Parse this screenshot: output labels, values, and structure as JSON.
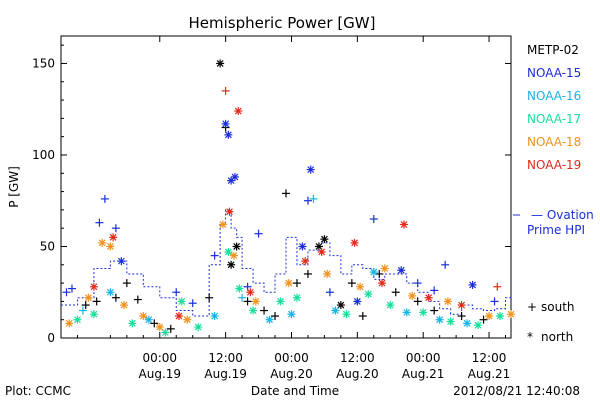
{
  "colors": {
    "METP-02": "#000000",
    "NOAA-15": "#1a2fd8",
    "NOAA-16": "#16b4e6",
    "NOAA-17": "#14e09a",
    "NOAA-18": "#f0921e",
    "NOAA-19": "#e02a1a",
    "ovation": "#1a2fd8"
  },
  "chart_data": {
    "type": "scatter",
    "title": "Hemispheric Power [GW]",
    "ylabel": "P [GW]",
    "xlabel": "Date and Time",
    "ylim": [
      0,
      165
    ],
    "y_ticks": [
      0,
      50,
      100,
      150
    ],
    "x_ticks": [
      {
        "time": "00:00",
        "date": "Aug.19"
      },
      {
        "time": "12:00",
        "date": "Aug.19"
      },
      {
        "time": "00:00",
        "date": "Aug.20"
      },
      {
        "time": "12:00",
        "date": "Aug.20"
      },
      {
        "time": "00:00",
        "date": "Aug.21"
      },
      {
        "time": "12:00",
        "date": "Aug.21"
      }
    ],
    "legend": [
      "METP-02",
      "NOAA-15",
      "NOAA-16",
      "NOAA-17",
      "NOAA-18",
      "NOAA-19"
    ],
    "ovation_label": [
      "— Ovation",
      "Prime HPI"
    ],
    "marker_key": [
      {
        "symbol": "+",
        "label": "south"
      },
      {
        "symbol": "*",
        "label": "north"
      }
    ],
    "series": [
      {
        "name": "METP-02",
        "points": [
          {
            "h": -13.5,
            "v": 18,
            "m": "+"
          },
          {
            "h": -11.5,
            "v": 20,
            "m": "+"
          },
          {
            "h": -8,
            "v": 22,
            "m": "+"
          },
          {
            "h": -6,
            "v": 30,
            "m": "+"
          },
          {
            "h": -4,
            "v": 21,
            "m": "+"
          },
          {
            "h": -1,
            "v": 8,
            "m": "+"
          },
          {
            "h": 2,
            "v": 5,
            "m": "+"
          },
          {
            "h": 9,
            "v": 22,
            "m": "+"
          },
          {
            "h": 11,
            "v": 150,
            "m": "*"
          },
          {
            "h": 12,
            "v": 115,
            "m": "+"
          },
          {
            "h": 13,
            "v": 40,
            "m": "*"
          },
          {
            "h": 14,
            "v": 50,
            "m": "*"
          },
          {
            "h": 16,
            "v": 20,
            "m": "+"
          },
          {
            "h": 19,
            "v": 15,
            "m": "+"
          },
          {
            "h": 21,
            "v": 12,
            "m": "+"
          },
          {
            "h": 23,
            "v": 79,
            "m": "+"
          },
          {
            "h": 25,
            "v": 30,
            "m": "+"
          },
          {
            "h": 27,
            "v": 35,
            "m": "+"
          },
          {
            "h": 29,
            "v": 50,
            "m": "*"
          },
          {
            "h": 30,
            "v": 54,
            "m": "*"
          },
          {
            "h": 33,
            "v": 18,
            "m": "*"
          },
          {
            "h": 35,
            "v": 30,
            "m": "+"
          },
          {
            "h": 37,
            "v": 12,
            "m": "+"
          },
          {
            "h": 40,
            "v": 35,
            "m": "+"
          },
          {
            "h": 43,
            "v": 25,
            "m": "+"
          },
          {
            "h": 47,
            "v": 20,
            "m": "+"
          },
          {
            "h": 50,
            "v": 15,
            "m": "+"
          },
          {
            "h": 55,
            "v": 12,
            "m": "+"
          },
          {
            "h": 59,
            "v": 10,
            "m": "+"
          }
        ]
      },
      {
        "name": "NOAA-15",
        "points": [
          {
            "h": -17,
            "v": 25,
            "m": "+"
          },
          {
            "h": -16,
            "v": 27,
            "m": "+"
          },
          {
            "h": -11,
            "v": 63,
            "m": "+"
          },
          {
            "h": -10,
            "v": 76,
            "m": "+"
          },
          {
            "h": -8,
            "v": 60,
            "m": "+"
          },
          {
            "h": -7,
            "v": 42,
            "m": "*"
          },
          {
            "h": 3,
            "v": 25,
            "m": "+"
          },
          {
            "h": 6,
            "v": 19,
            "m": "+"
          },
          {
            "h": 10,
            "v": 45,
            "m": "+"
          },
          {
            "h": 12,
            "v": 117,
            "m": "*"
          },
          {
            "h": 12.5,
            "v": 111,
            "m": "*"
          },
          {
            "h": 13,
            "v": 86,
            "m": "*"
          },
          {
            "h": 13.7,
            "v": 88,
            "m": "*"
          },
          {
            "h": 16,
            "v": 28,
            "m": "+"
          },
          {
            "h": 18,
            "v": 57,
            "m": "+"
          },
          {
            "h": 26,
            "v": 50,
            "m": "*"
          },
          {
            "h": 27,
            "v": 75,
            "m": "+"
          },
          {
            "h": 27.5,
            "v": 92,
            "m": "*"
          },
          {
            "h": 31,
            "v": 25,
            "m": "+"
          },
          {
            "h": 36,
            "v": 20,
            "m": "*"
          },
          {
            "h": 39,
            "v": 65,
            "m": "+"
          },
          {
            "h": 44,
            "v": 37,
            "m": "*"
          },
          {
            "h": 47,
            "v": 30,
            "m": "+"
          },
          {
            "h": 50,
            "v": 26,
            "m": "+"
          },
          {
            "h": 52,
            "v": 40,
            "m": "+"
          },
          {
            "h": 57,
            "v": 29,
            "m": "*"
          },
          {
            "h": 61,
            "v": 20,
            "m": "+"
          }
        ]
      },
      {
        "name": "NOAA-16",
        "points": [
          {
            "h": -14,
            "v": 15,
            "m": "+"
          },
          {
            "h": -9,
            "v": 25,
            "m": "*"
          },
          {
            "h": -2,
            "v": 10,
            "m": "*"
          },
          {
            "h": 10,
            "v": 12,
            "m": "*"
          },
          {
            "h": 15,
            "v": 22,
            "m": "+"
          },
          {
            "h": 20,
            "v": 10,
            "m": "*"
          },
          {
            "h": 24,
            "v": 13,
            "m": "*"
          },
          {
            "h": 28,
            "v": 76,
            "m": "+"
          },
          {
            "h": 32,
            "v": 15,
            "m": "*"
          },
          {
            "h": 39,
            "v": 36,
            "m": "*"
          },
          {
            "h": 45,
            "v": 14,
            "m": "*"
          },
          {
            "h": 51,
            "v": 10,
            "m": "*"
          },
          {
            "h": 56,
            "v": 8,
            "m": "*"
          }
        ]
      },
      {
        "name": "NOAA-17",
        "points": [
          {
            "h": -15,
            "v": 10,
            "m": "*"
          },
          {
            "h": -12,
            "v": 13,
            "m": "*"
          },
          {
            "h": -5,
            "v": 8,
            "m": "*"
          },
          {
            "h": 1,
            "v": 3,
            "m": "*"
          },
          {
            "h": 4,
            "v": 20,
            "m": "*"
          },
          {
            "h": 7,
            "v": 6,
            "m": "*"
          },
          {
            "h": 12.5,
            "v": 47,
            "m": "*"
          },
          {
            "h": 14.5,
            "v": 27,
            "m": "*"
          },
          {
            "h": 17,
            "v": 15,
            "m": "*"
          },
          {
            "h": 22,
            "v": 20,
            "m": "*"
          },
          {
            "h": 25,
            "v": 22,
            "m": "*"
          },
          {
            "h": 34,
            "v": 13,
            "m": "*"
          },
          {
            "h": 38,
            "v": 24,
            "m": "*"
          },
          {
            "h": 42,
            "v": 18,
            "m": "*"
          },
          {
            "h": 48,
            "v": 14,
            "m": "*"
          },
          {
            "h": 53,
            "v": 9,
            "m": "*"
          },
          {
            "h": 58,
            "v": 7,
            "m": "*"
          },
          {
            "h": 62,
            "v": 12,
            "m": "*"
          }
        ]
      },
      {
        "name": "NOAA-18",
        "points": [
          {
            "h": -16.5,
            "v": 8,
            "m": "*"
          },
          {
            "h": -13,
            "v": 22,
            "m": "*"
          },
          {
            "h": -10.5,
            "v": 52,
            "m": "*"
          },
          {
            "h": -9,
            "v": 50,
            "m": "*"
          },
          {
            "h": -6.5,
            "v": 18,
            "m": "*"
          },
          {
            "h": -3,
            "v": 12,
            "m": "*"
          },
          {
            "h": 0,
            "v": 6,
            "m": "*"
          },
          {
            "h": 5,
            "v": 10,
            "m": "*"
          },
          {
            "h": 11.5,
            "v": 62,
            "m": "*"
          },
          {
            "h": 13.5,
            "v": 45,
            "m": "*"
          },
          {
            "h": 17.5,
            "v": 20,
            "m": "*"
          },
          {
            "h": 23.5,
            "v": 30,
            "m": "*"
          },
          {
            "h": 30.5,
            "v": 35,
            "m": "*"
          },
          {
            "h": 36.5,
            "v": 28,
            "m": "*"
          },
          {
            "h": 41,
            "v": 38,
            "m": "*"
          },
          {
            "h": 46,
            "v": 23,
            "m": "*"
          },
          {
            "h": 52.5,
            "v": 20,
            "m": "*"
          },
          {
            "h": 60,
            "v": 12,
            "m": "*"
          },
          {
            "h": 64,
            "v": 13,
            "m": "*"
          }
        ]
      },
      {
        "name": "NOAA-19",
        "points": [
          {
            "h": -12,
            "v": 28,
            "m": "*"
          },
          {
            "h": -8.5,
            "v": 55,
            "m": "*"
          },
          {
            "h": 3.5,
            "v": 12,
            "m": "*"
          },
          {
            "h": 12,
            "v": 135,
            "m": "+"
          },
          {
            "h": 12.7,
            "v": 69,
            "m": "*"
          },
          {
            "h": 14.3,
            "v": 124,
            "m": "*"
          },
          {
            "h": 16.5,
            "v": 25,
            "m": "*"
          },
          {
            "h": 26.5,
            "v": 42,
            "m": "*"
          },
          {
            "h": 29.5,
            "v": 47,
            "m": "*"
          },
          {
            "h": 35.5,
            "v": 52,
            "m": "*"
          },
          {
            "h": 40.5,
            "v": 30,
            "m": "*"
          },
          {
            "h": 44.5,
            "v": 62,
            "m": "*"
          },
          {
            "h": 49,
            "v": 22,
            "m": "*"
          },
          {
            "h": 55,
            "v": 18,
            "m": "*"
          },
          {
            "h": 61.5,
            "v": 28,
            "m": "+"
          }
        ]
      }
    ],
    "ovation_hpi": [
      [
        -18,
        18
      ],
      [
        -15,
        22
      ],
      [
        -12,
        38
      ],
      [
        -9,
        42
      ],
      [
        -6,
        35
      ],
      [
        -3,
        28
      ],
      [
        0,
        22
      ],
      [
        3,
        15
      ],
      [
        6,
        12
      ],
      [
        9,
        40
      ],
      [
        11,
        62
      ],
      [
        12,
        70
      ],
      [
        13,
        60
      ],
      [
        14,
        55
      ],
      [
        15,
        38
      ],
      [
        17,
        30
      ],
      [
        19,
        25
      ],
      [
        21,
        35
      ],
      [
        23,
        55
      ],
      [
        25,
        40
      ],
      [
        27,
        48
      ],
      [
        29,
        52
      ],
      [
        31,
        45
      ],
      [
        33,
        35
      ],
      [
        35,
        40
      ],
      [
        37,
        38
      ],
      [
        39,
        32
      ],
      [
        41,
        35
      ],
      [
        43,
        35
      ],
      [
        45,
        30
      ],
      [
        47,
        25
      ],
      [
        49,
        20
      ],
      [
        51,
        16
      ],
      [
        53,
        13
      ],
      [
        55,
        18
      ],
      [
        57,
        16
      ],
      [
        59,
        15
      ],
      [
        61,
        16
      ],
      [
        63,
        22
      ],
      [
        64,
        22
      ]
    ],
    "xlim": [
      -18,
      64
    ]
  },
  "footer": {
    "plot_label": "Plot: CCMC",
    "timestamp": "2012/08/21 12:40:08"
  }
}
